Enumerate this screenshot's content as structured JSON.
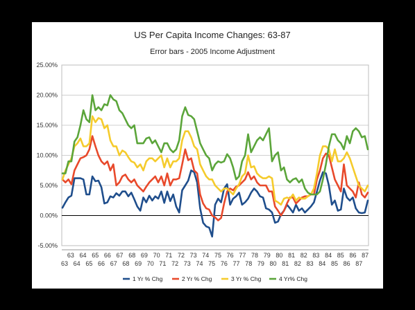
{
  "chart_data": {
    "type": "line",
    "title": "US Per Capita Income Changes: 63-87",
    "subtitle": "Error bars - 2005 Income Adjustment",
    "xlabel": "",
    "ylabel": "",
    "ylim": [
      -0.05,
      0.25
    ],
    "yticks": [
      "-5.00%",
      "0.00%",
      "5.00%",
      "10.00%",
      "15.00%",
      "20.00%",
      "25.00%"
    ],
    "xtick_labels": [
      "63",
      "63",
      "64",
      "64",
      "65",
      "65",
      "66",
      "66",
      "67",
      "67",
      "68",
      "68",
      "69",
      "69",
      "70",
      "70",
      "71",
      "71",
      "72",
      "72",
      "73",
      "73",
      "74",
      "74",
      "75",
      "75",
      "76",
      "76",
      "77",
      "77",
      "78",
      "78",
      "79",
      "79",
      "80",
      "80",
      "81",
      "81",
      "82",
      "82",
      "83",
      "83",
      "84",
      "84",
      "85",
      "85",
      "86",
      "86",
      "87",
      "87"
    ],
    "grid": true,
    "legend": "bottom",
    "series": [
      {
        "name": "1 Yr % Chg",
        "color": "#1f4e8c",
        "values": [
          0.013,
          0.022,
          0.03,
          0.033,
          0.062,
          0.062,
          0.062,
          0.06,
          0.035,
          0.035,
          0.065,
          0.057,
          0.058,
          0.047,
          0.02,
          0.022,
          0.032,
          0.03,
          0.037,
          0.033,
          0.04,
          0.04,
          0.032,
          0.038,
          0.027,
          0.015,
          0.008,
          0.03,
          0.022,
          0.033,
          0.025,
          0.032,
          0.028,
          0.04,
          0.021,
          0.04,
          0.024,
          0.035,
          0.015,
          0.005,
          0.042,
          0.05,
          0.058,
          0.075,
          0.072,
          0.055,
          0.012,
          -0.012,
          -0.018,
          -0.02,
          -0.035,
          0.018,
          0.028,
          0.022,
          0.045,
          0.052,
          0.018,
          0.028,
          0.032,
          0.038,
          0.018,
          0.022,
          0.028,
          0.038,
          0.045,
          0.04,
          0.032,
          0.03,
          0.012,
          0.01,
          0.005,
          -0.012,
          -0.01,
          0.002,
          0.008,
          0.018,
          0.012,
          0.005,
          0.018,
          0.008,
          0.012,
          0.005,
          0.01,
          0.015,
          0.022,
          0.04,
          0.058,
          0.072,
          0.07,
          0.05,
          0.018,
          0.025,
          0.008,
          0.01,
          0.045,
          0.03,
          0.025,
          0.03,
          0.012,
          0.005,
          0.004,
          0.005,
          0.025
        ]
      },
      {
        "name": "2 Yr % Chg",
        "color": "#e8492b",
        "values": [
          0.06,
          0.055,
          0.06,
          0.052,
          0.075,
          0.085,
          0.095,
          0.097,
          0.1,
          0.11,
          0.132,
          0.115,
          0.1,
          0.09,
          0.085,
          0.09,
          0.075,
          0.085,
          0.05,
          0.055,
          0.065,
          0.068,
          0.06,
          0.055,
          0.06,
          0.05,
          0.045,
          0.04,
          0.048,
          0.055,
          0.06,
          0.065,
          0.055,
          0.065,
          0.05,
          0.07,
          0.05,
          0.06,
          0.06,
          0.062,
          0.085,
          0.11,
          0.092,
          0.095,
          0.075,
          0.07,
          0.035,
          0.02,
          0.012,
          0.01,
          0.0,
          -0.003,
          -0.008,
          -0.004,
          0.02,
          0.04,
          0.045,
          0.042,
          0.048,
          0.05,
          0.055,
          0.06,
          0.072,
          0.06,
          0.065,
          0.055,
          0.05,
          0.05,
          0.05,
          0.04,
          0.04,
          0.015,
          0.008,
          0.0,
          0.008,
          0.02,
          0.03,
          0.03,
          0.02,
          0.025,
          0.03,
          0.032,
          0.032,
          0.035,
          0.035,
          0.06,
          0.075,
          0.095,
          0.103,
          0.1,
          0.08,
          0.06,
          0.05,
          0.04,
          0.085,
          0.05,
          0.045,
          0.04,
          0.03,
          0.055,
          0.035,
          0.03,
          0.038
        ]
      },
      {
        "name": "3 Yr % Chg",
        "color": "#f5cb2c",
        "values": [
          0.06,
          0.075,
          0.085,
          0.095,
          0.115,
          0.12,
          0.128,
          0.115,
          0.115,
          0.12,
          0.165,
          0.155,
          0.162,
          0.16,
          0.145,
          0.15,
          0.125,
          0.115,
          0.115,
          0.1,
          0.108,
          0.105,
          0.097,
          0.09,
          0.088,
          0.08,
          0.085,
          0.075,
          0.09,
          0.095,
          0.095,
          0.09,
          0.095,
          0.1,
          0.08,
          0.095,
          0.08,
          0.09,
          0.09,
          0.095,
          0.125,
          0.14,
          0.14,
          0.13,
          0.115,
          0.11,
          0.085,
          0.075,
          0.065,
          0.06,
          0.06,
          0.05,
          0.045,
          0.04,
          0.045,
          0.045,
          0.04,
          0.035,
          0.045,
          0.052,
          0.065,
          0.07,
          0.1,
          0.08,
          0.082,
          0.07,
          0.065,
          0.062,
          0.062,
          0.065,
          0.062,
          0.025,
          0.022,
          0.018,
          0.028,
          0.03,
          0.028,
          0.035,
          0.025,
          0.03,
          0.028,
          0.028,
          0.032,
          0.035,
          0.045,
          0.07,
          0.1,
          0.115,
          0.115,
          0.11,
          0.09,
          0.11,
          0.09,
          0.09,
          0.095,
          0.105,
          0.095,
          0.08,
          0.065,
          0.05,
          0.045,
          0.04,
          0.05
        ]
      },
      {
        "name": "4 Yr% Chg",
        "color": "#5ba53a",
        "values": [
          0.07,
          0.07,
          0.09,
          0.09,
          0.123,
          0.13,
          0.15,
          0.175,
          0.16,
          0.155,
          0.2,
          0.175,
          0.18,
          0.175,
          0.185,
          0.183,
          0.2,
          0.193,
          0.19,
          0.175,
          0.17,
          0.16,
          0.15,
          0.145,
          0.15,
          0.12,
          0.12,
          0.12,
          0.128,
          0.13,
          0.12,
          0.125,
          0.115,
          0.105,
          0.12,
          0.12,
          0.11,
          0.105,
          0.11,
          0.125,
          0.165,
          0.18,
          0.167,
          0.165,
          0.16,
          0.14,
          0.12,
          0.11,
          0.1,
          0.095,
          0.075,
          0.085,
          0.09,
          0.088,
          0.09,
          0.102,
          0.095,
          0.08,
          0.06,
          0.065,
          0.09,
          0.1,
          0.135,
          0.105,
          0.115,
          0.125,
          0.13,
          0.125,
          0.135,
          0.145,
          0.09,
          0.1,
          0.105,
          0.075,
          0.08,
          0.06,
          0.055,
          0.06,
          0.062,
          0.055,
          0.06,
          0.045,
          0.038,
          0.035,
          0.035,
          0.035,
          0.04,
          0.06,
          0.085,
          0.115,
          0.135,
          0.135,
          0.125,
          0.12,
          0.11,
          0.132,
          0.12,
          0.14,
          0.145,
          0.14,
          0.13,
          0.132,
          0.11
        ]
      }
    ]
  }
}
